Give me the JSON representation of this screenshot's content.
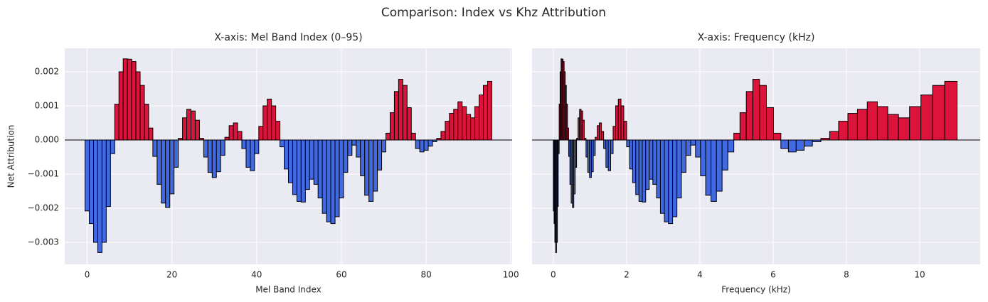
{
  "title": "Comparison: Index vs Khz Attribution",
  "chart_data": [
    {
      "type": "bar",
      "title": "X-axis: Mel Band Index (0–95)",
      "xlabel": "Mel Band Index",
      "ylabel": "Net Attribution",
      "x": [
        0,
        1,
        2,
        3,
        4,
        5,
        6,
        7,
        8,
        9,
        10,
        11,
        12,
        13,
        14,
        15,
        16,
        17,
        18,
        19,
        20,
        21,
        22,
        23,
        24,
        25,
        26,
        27,
        28,
        29,
        30,
        31,
        32,
        33,
        34,
        35,
        36,
        37,
        38,
        39,
        40,
        41,
        42,
        43,
        44,
        45,
        46,
        47,
        48,
        49,
        50,
        51,
        52,
        53,
        54,
        55,
        56,
        57,
        58,
        59,
        60,
        61,
        62,
        63,
        64,
        65,
        66,
        67,
        68,
        69,
        70,
        71,
        72,
        73,
        74,
        75,
        76,
        77,
        78,
        79,
        80,
        81,
        82,
        83,
        84,
        85,
        86,
        87,
        88,
        89,
        90,
        91,
        92,
        93,
        94,
        95
      ],
      "values": [
        -0.00208,
        -0.00245,
        -0.003,
        -0.0033,
        -0.003,
        -0.00195,
        -0.0004,
        0.00105,
        0.002,
        0.00238,
        0.00237,
        0.0023,
        0.002,
        0.0016,
        0.00105,
        0.00035,
        -0.00048,
        -0.0013,
        -0.00185,
        -0.00198,
        -0.00158,
        -0.0008,
        5e-05,
        0.00065,
        0.0009,
        0.00085,
        0.00058,
        5e-05,
        -0.0005,
        -0.00095,
        -0.0011,
        -0.00093,
        -0.00045,
        8e-05,
        0.00042,
        0.0005,
        0.00025,
        -0.00025,
        -0.0008,
        -0.0009,
        -0.0004,
        0.0004,
        0.001,
        0.0012,
        0.001,
        0.00055,
        -0.0002,
        -0.00085,
        -0.00125,
        -0.0016,
        -0.0018,
        -0.00182,
        -0.00145,
        -0.00115,
        -0.0013,
        -0.0017,
        -0.00215,
        -0.0024,
        -0.00245,
        -0.00225,
        -0.0017,
        -0.00095,
        -0.00045,
        -0.00015,
        -0.0005,
        -0.00105,
        -0.00162,
        -0.0018,
        -0.0015,
        -0.00088,
        -0.00035,
        0.0002,
        0.0008,
        0.00142,
        0.00178,
        0.0016,
        0.00095,
        0.0002,
        -0.00025,
        -0.00035,
        -0.0003,
        -0.00018,
        -5e-05,
        5e-05,
        0.00025,
        0.00055,
        0.00078,
        0.0009,
        0.00112,
        0.00098,
        0.00075,
        0.00065,
        0.00098,
        0.00132,
        0.0016,
        0.00172
      ],
      "colors": {
        "positive": "#dc143c",
        "negative": "#4169e1"
      },
      "xlim": [
        -5.3,
        100.3
      ],
      "xticks": [
        0,
        20,
        40,
        60,
        80,
        100
      ],
      "ylim": [
        -0.003646,
        0.002688
      ],
      "yticks": [
        {
          "value": -0.003,
          "label": "−0.003"
        },
        {
          "value": -0.002,
          "label": "−0.002"
        },
        {
          "value": -0.001,
          "label": "−0.001"
        },
        {
          "value": 0,
          "label": "0.000"
        },
        {
          "value": 0.001,
          "label": "0.001"
        },
        {
          "value": 0.002,
          "label": "0.002"
        }
      ],
      "grid": true
    },
    {
      "type": "histogram",
      "title": "X-axis: Frequency (kHz)",
      "xlabel": "Frequency (kHz)",
      "bins": [
        0,
        0.0209,
        0.0423,
        0.0644,
        0.0872,
        0.1107,
        0.1348,
        0.1597,
        0.1853,
        0.2117,
        0.2389,
        0.2668,
        0.2956,
        0.3252,
        0.3558,
        0.3872,
        0.4196,
        0.453,
        0.4873,
        0.5227,
        0.5591,
        0.5966,
        0.6353,
        0.675,
        0.716,
        0.7582,
        0.8016,
        0.8464,
        0.8924,
        0.9399,
        0.9887,
        1.039,
        1.0908,
        1.1442,
        1.1991,
        1.2557,
        1.314,
        1.374,
        1.4357,
        1.4994,
        1.5649,
        1.6324,
        1.7018,
        1.7734,
        1.8471,
        1.923,
        2.0011,
        2.0816,
        2.1644,
        2.2498,
        2.3377,
        2.4281,
        2.5213,
        2.6173,
        2.7161,
        2.8179,
        2.9227,
        3.0306,
        3.1417,
        3.2562,
        3.374,
        3.4954,
        3.6204,
        3.7491,
        3.8816,
        4.0181,
        4.1586,
        4.3034,
        4.4524,
        4.606,
        4.764,
        4.9268,
        5.0944,
        5.267,
        5.4448,
        5.6278,
        5.8163,
        6.0105,
        6.2104,
        6.4163,
        6.6282,
        6.8465,
        7.0713,
        7.3028,
        7.5413,
        7.7867,
        8.0394,
        8.2998,
        8.5679,
        8.844,
        9.1282,
        9.4209,
        9.7224,
        10.0328,
        10.3526,
        10.6817,
        11.0206
      ],
      "values": [
        -0.00208,
        -0.00245,
        -0.003,
        -0.0033,
        -0.003,
        -0.00195,
        -0.0004,
        0.00105,
        0.002,
        0.00238,
        0.00237,
        0.0023,
        0.002,
        0.0016,
        0.00105,
        0.00035,
        -0.00048,
        -0.0013,
        -0.00185,
        -0.00198,
        -0.00158,
        -0.0008,
        5e-05,
        0.00065,
        0.0009,
        0.00085,
        0.00058,
        5e-05,
        -0.0005,
        -0.00095,
        -0.0011,
        -0.00093,
        -0.00045,
        8e-05,
        0.00042,
        0.0005,
        0.00025,
        -0.00025,
        -0.0008,
        -0.0009,
        -0.0004,
        0.0004,
        0.001,
        0.0012,
        0.001,
        0.00055,
        -0.0002,
        -0.00085,
        -0.00125,
        -0.0016,
        -0.0018,
        -0.00182,
        -0.00145,
        -0.00115,
        -0.0013,
        -0.0017,
        -0.00215,
        -0.0024,
        -0.00245,
        -0.00225,
        -0.0017,
        -0.00095,
        -0.00045,
        -0.00015,
        -0.0005,
        -0.00105,
        -0.00162,
        -0.0018,
        -0.0015,
        -0.00088,
        -0.00035,
        0.0002,
        0.0008,
        0.00142,
        0.00178,
        0.0016,
        0.00095,
        0.0002,
        -0.00025,
        -0.00035,
        -0.0003,
        -0.00018,
        -5e-05,
        5e-05,
        0.00025,
        0.00055,
        0.00078,
        0.0009,
        0.00112,
        0.00098,
        0.00075,
        0.00065,
        0.00098,
        0.00132,
        0.0016,
        0.00172
      ],
      "colors": {
        "positive": "#dc143c",
        "negative": "#4169e1"
      },
      "xlim": [
        -0.58,
        11.65
      ],
      "xticks": [
        0,
        2,
        4,
        6,
        8,
        10
      ],
      "sharey": true,
      "grid": true
    }
  ]
}
